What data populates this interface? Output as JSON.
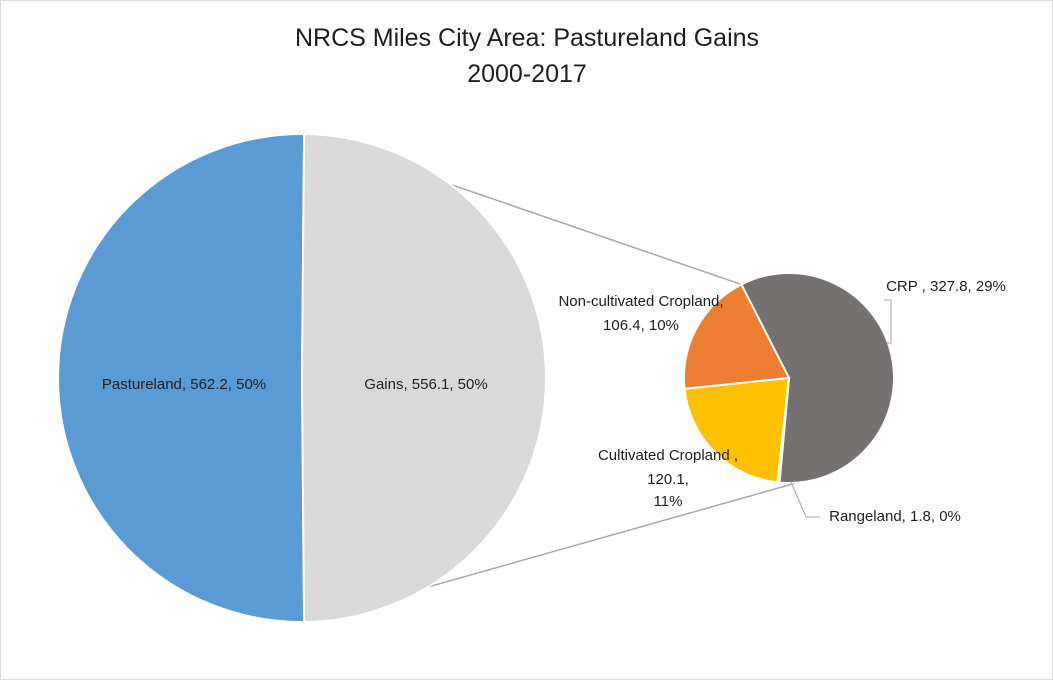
{
  "chart_data": {
    "type": "pie",
    "subtype": "pie-of-pie",
    "title_line1": "NRCS Miles City Area: Pastureland Gains",
    "title_line2": "2000-2017",
    "main_slices": [
      {
        "name": "Pastureland",
        "value": 562.2,
        "percent": "50%",
        "color": "#5b9bd5",
        "label": "Pastureland, 562.2, 50%"
      },
      {
        "name": "Gains",
        "value": 556.1,
        "percent": "50%",
        "color": "#d9d9d9",
        "label": "Gains, 556.1, 50%"
      }
    ],
    "secondary_slices": [
      {
        "name": "CRP",
        "value": 327.8,
        "percent": "29%",
        "color": "#767171",
        "label": "CRP , 327.8, 29%"
      },
      {
        "name": "Rangeland",
        "value": 1.8,
        "percent": "0%",
        "color": "#a5a5a5",
        "label": "Rangeland, 1.8, 0%"
      },
      {
        "name": "Cultivated Cropland",
        "value": 120.1,
        "percent": "11%",
        "color": "#ffc000",
        "label_lines": [
          "Cultivated Cropland ,",
          "120.1,",
          "11%"
        ]
      },
      {
        "name": "Non-cultivated Cropland",
        "value": 106.4,
        "percent": "10%",
        "color": "#ed7d31",
        "label_lines": [
          "Non-cultivated Cropland,",
          "106.4, 10%"
        ]
      }
    ],
    "legend": "none",
    "connector_color": "#a6a6a6"
  }
}
